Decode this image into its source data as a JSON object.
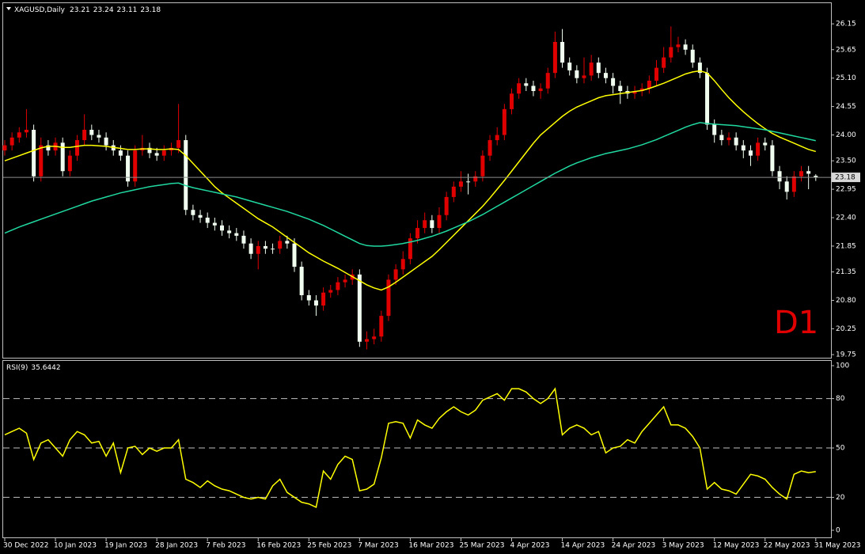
{
  "chart_data": [
    {
      "type": "candlestick",
      "title": "XAGUSD,Daily",
      "annotation": "D1",
      "up_color": "#e00000",
      "down_color": "#f0fff0",
      "categories": [
        "30 Dec 2022",
        null,
        null,
        null,
        null,
        null,
        null,
        "10 Jan 2023",
        null,
        null,
        null,
        null,
        null,
        null,
        "19 Jan 2023",
        null,
        null,
        null,
        null,
        null,
        null,
        "28 Jan 2023",
        null,
        null,
        null,
        null,
        null,
        null,
        "7 Feb 2023",
        null,
        null,
        null,
        null,
        null,
        null,
        "16 Feb 2023",
        null,
        null,
        null,
        null,
        null,
        null,
        "25 Feb 2023",
        null,
        null,
        null,
        null,
        null,
        null,
        "7 Mar 2023",
        null,
        null,
        null,
        null,
        null,
        null,
        "16 Mar 2023",
        null,
        null,
        null,
        null,
        null,
        null,
        "25 Mar 2023",
        null,
        null,
        null,
        null,
        null,
        null,
        "4 Apr 2023",
        null,
        null,
        null,
        null,
        null,
        null,
        "14 Apr 2023",
        null,
        null,
        null,
        null,
        null,
        null,
        "24 Apr 2023",
        null,
        null,
        null,
        null,
        null,
        null,
        "3 May 2023",
        null,
        null,
        null,
        null,
        null,
        null,
        "12 May 2023",
        null,
        null,
        null,
        null,
        null,
        null,
        "22 May 2023",
        null,
        null,
        null,
        null,
        null,
        null,
        "31 May 2023"
      ],
      "open": [
        23.7,
        23.8,
        23.95,
        24.05,
        24.1,
        23.2,
        23.8,
        23.7,
        23.85,
        23.3,
        23.6,
        23.9,
        24.1,
        24,
        23.95,
        23.8,
        23.7,
        23.6,
        23.1,
        23.7,
        23.75,
        23.65,
        23.6,
        23.7,
        23.75,
        23.9,
        22.55,
        22.45,
        22.4,
        22.3,
        22.25,
        22.15,
        22.1,
        22.05,
        21.9,
        21.7,
        21.85,
        21.8,
        21.8,
        21.95,
        21.9,
        21.45,
        20.9,
        20.8,
        20.7,
        20.95,
        21,
        21.15,
        21.2,
        21.3,
        20,
        20.05,
        20.1,
        20.5,
        21.2,
        21.4,
        21.6,
        22,
        22.2,
        22.35,
        22.2,
        22.45,
        22.8,
        23,
        23.1,
        23.1,
        23.2,
        23.6,
        23.9,
        24,
        24.5,
        24.8,
        25,
        24.95,
        24.85,
        24.9,
        25.2,
        25.8,
        25.4,
        25.25,
        25.1,
        25.15,
        25.4,
        25.2,
        25.1,
        24.95,
        24.85,
        24.8,
        24.85,
        24.9,
        25.05,
        25.3,
        25.5,
        25.7,
        25.75,
        25.65,
        25.4,
        25.2,
        24.2,
        24,
        23.9,
        23.95,
        23.8,
        23.7,
        23.6,
        23.85,
        23.8,
        23.3,
        23.1,
        22.9,
        23.2,
        23.3,
        23.21
      ],
      "high": [
        23.9,
        24.05,
        24.15,
        24.5,
        24.2,
        23.95,
        23.9,
        23.95,
        23.95,
        23.7,
        24,
        24.4,
        24.2,
        24.1,
        24.05,
        23.9,
        23.8,
        23.7,
        23.8,
        24,
        23.85,
        23.75,
        23.8,
        23.85,
        24.6,
        24,
        22.65,
        22.55,
        22.5,
        22.4,
        22.35,
        22.25,
        22.2,
        22.15,
        22,
        21.95,
        21.95,
        21.9,
        22.05,
        22.05,
        22,
        21.55,
        21,
        20.9,
        21.05,
        21.1,
        21.25,
        21.3,
        21.4,
        21.4,
        20.2,
        20.25,
        20.6,
        21.3,
        21.5,
        21.75,
        22.1,
        22.35,
        22.5,
        22.45,
        22.6,
        22.9,
        23.1,
        23.3,
        23.25,
        23.3,
        23.7,
        24,
        24.15,
        24.6,
        24.9,
        25.1,
        25.1,
        25.05,
        25,
        25.3,
        26,
        26.05,
        25.5,
        25.35,
        25.5,
        25.55,
        25.5,
        25.3,
        25.2,
        25.05,
        24.95,
        24.95,
        25,
        25.15,
        25.45,
        25.7,
        26.1,
        25.9,
        25.85,
        25.75,
        25.5,
        25.3,
        24.3,
        24.1,
        24.05,
        24.05,
        23.9,
        23.8,
        23.95,
        23.95,
        23.9,
        23.4,
        23.2,
        23.3,
        23.4,
        23.4,
        23.24
      ],
      "low": [
        23.6,
        23.7,
        23.85,
        23.95,
        23.1,
        23.1,
        23.6,
        23.6,
        23.2,
        23.2,
        23.5,
        23.8,
        23.9,
        23.85,
        23.7,
        23.6,
        23.5,
        23,
        23,
        23.6,
        23.55,
        23.5,
        23.5,
        23.6,
        23.65,
        22.45,
        22.35,
        22.3,
        22.2,
        22.15,
        22.05,
        22,
        21.95,
        21.8,
        21.6,
        21.4,
        21.7,
        21.7,
        21.7,
        21.8,
        21.35,
        20.8,
        20.7,
        20.5,
        20.6,
        20.85,
        20.9,
        21.05,
        21.1,
        19.9,
        19.85,
        19.95,
        20,
        20.4,
        21.1,
        21.3,
        21.5,
        21.9,
        22.1,
        22.1,
        22.1,
        22.35,
        22.7,
        22.9,
        22.85,
        23,
        23.1,
        23.5,
        23.8,
        23.9,
        24.4,
        24.7,
        24.85,
        24.75,
        24.7,
        24.8,
        25.1,
        25.3,
        25.15,
        25,
        25,
        25.05,
        25.1,
        25,
        24.8,
        24.6,
        24.7,
        24.7,
        24.75,
        24.8,
        24.95,
        25.2,
        25.4,
        25.6,
        25.55,
        25.3,
        25.1,
        24.1,
        23.85,
        23.8,
        23.8,
        23.7,
        23.55,
        23.4,
        23.5,
        23.7,
        23.2,
        22.95,
        22.75,
        22.8,
        23.1,
        22.95,
        23.11
      ],
      "close": [
        23.8,
        23.95,
        24.05,
        24.1,
        23.2,
        23.8,
        23.7,
        23.85,
        23.3,
        23.6,
        23.9,
        24.1,
        24,
        23.95,
        23.8,
        23.7,
        23.6,
        23.1,
        23.7,
        23.75,
        23.65,
        23.6,
        23.7,
        23.75,
        23.9,
        22.55,
        22.45,
        22.4,
        22.3,
        22.25,
        22.15,
        22.1,
        22.05,
        21.9,
        21.7,
        21.85,
        21.8,
        21.8,
        21.95,
        21.9,
        21.45,
        20.9,
        20.8,
        20.7,
        20.95,
        21,
        21.15,
        21.2,
        21.3,
        20,
        20.05,
        20.1,
        20.5,
        21.2,
        21.4,
        21.6,
        22,
        22.2,
        22.35,
        22.2,
        22.45,
        22.8,
        23,
        23.1,
        23.1,
        23.2,
        23.6,
        23.9,
        24,
        24.5,
        24.8,
        25,
        24.95,
        24.85,
        24.9,
        25.2,
        25.8,
        25.4,
        25.25,
        25.1,
        25.15,
        25.4,
        25.2,
        25.1,
        24.95,
        24.85,
        24.8,
        24.85,
        24.9,
        25.05,
        25.3,
        25.5,
        25.7,
        25.75,
        25.65,
        25.4,
        25.2,
        24.2,
        24,
        23.9,
        23.95,
        23.8,
        23.7,
        23.6,
        23.85,
        23.8,
        23.3,
        23.1,
        22.9,
        23.2,
        23.3,
        23.25,
        23.18
      ],
      "lines": [
        {
          "color": "#ffff00",
          "values": [
            23.5,
            23.55,
            23.6,
            23.65,
            23.7,
            23.75,
            23.78,
            23.78,
            23.76,
            23.76,
            23.78,
            23.8,
            23.8,
            23.79,
            23.78,
            23.76,
            23.74,
            23.72,
            23.72,
            23.73,
            23.73,
            23.72,
            23.72,
            23.73,
            23.72,
            23.6,
            23.45,
            23.3,
            23.15,
            23,
            22.88,
            22.78,
            22.68,
            22.58,
            22.48,
            22.38,
            22.3,
            22.22,
            22.12,
            22.02,
            21.92,
            21.82,
            21.72,
            21.64,
            21.56,
            21.49,
            21.42,
            21.34,
            21.26,
            21.18,
            21.1,
            21.04,
            21,
            21.06,
            21.15,
            21.25,
            21.35,
            21.45,
            21.55,
            21.65,
            21.78,
            21.92,
            22.06,
            22.2,
            22.34,
            22.48,
            22.62,
            22.78,
            22.95,
            23.12,
            23.3,
            23.48,
            23.66,
            23.84,
            24,
            24.12,
            24.24,
            24.36,
            24.46,
            24.54,
            24.6,
            24.66,
            24.72,
            24.76,
            24.78,
            24.8,
            24.82,
            24.84,
            24.86,
            24.9,
            24.95,
            25,
            25.06,
            25.12,
            25.18,
            25.22,
            25.24,
            25.2,
            25.05,
            24.88,
            24.72,
            24.58,
            24.45,
            24.33,
            24.22,
            24.12,
            24.03,
            23.96,
            23.9,
            23.84,
            23.78,
            23.72,
            23.68
          ]
        },
        {
          "color": "#20d8a0",
          "values": [
            22.1,
            22.16,
            22.22,
            22.27,
            22.32,
            22.37,
            22.42,
            22.47,
            22.52,
            22.57,
            22.62,
            22.67,
            22.72,
            22.76,
            22.8,
            22.84,
            22.88,
            22.91,
            22.94,
            22.97,
            23,
            23.02,
            23.04,
            23.06,
            23.07,
            23.02,
            22.98,
            22.95,
            22.92,
            22.89,
            22.86,
            22.83,
            22.8,
            22.76,
            22.72,
            22.68,
            22.64,
            22.6,
            22.56,
            22.52,
            22.47,
            22.42,
            22.37,
            22.31,
            22.25,
            22.18,
            22.11,
            22.04,
            21.97,
            21.9,
            21.86,
            21.85,
            21.85,
            21.86,
            21.88,
            21.9,
            21.93,
            21.96,
            22,
            22.04,
            22.09,
            22.14,
            22.2,
            22.26,
            22.32,
            22.39,
            22.46,
            22.54,
            22.62,
            22.7,
            22.78,
            22.86,
            22.94,
            23.02,
            23.1,
            23.18,
            23.26,
            23.33,
            23.4,
            23.46,
            23.51,
            23.56,
            23.6,
            23.64,
            23.67,
            23.7,
            23.73,
            23.77,
            23.81,
            23.86,
            23.91,
            23.97,
            24.03,
            24.09,
            24.15,
            24.2,
            24.24,
            24.22,
            24.21,
            24.2,
            24.19,
            24.18,
            24.16,
            24.14,
            24.12,
            24.1,
            24.07,
            24.04,
            24.01,
            23.98,
            23.95,
            23.92,
            23.89
          ]
        }
      ],
      "ylim": [
        19.69,
        26.55
      ],
      "yticks": [
        19.75,
        20.25,
        {
          "value": 20.8,
          "label": "20.80"
        },
        21.35,
        21.85,
        {
          "value": 22.4,
          "label": "22.40"
        },
        22.95,
        {
          "value": 23.5,
          "label": "23.50"
        },
        {
          "value": 24,
          "label": "24.00"
        },
        24.55,
        {
          "value": 25.1,
          "label": "25.10"
        },
        25.65,
        26.15
      ]
    },
    {
      "type": "line",
      "title": "RSI(9)",
      "color": "#ffff00",
      "values": [
        58,
        60,
        62,
        59,
        43,
        53,
        55,
        50,
        45,
        55,
        60,
        58,
        53,
        54,
        45,
        53,
        35,
        50,
        51,
        46,
        50,
        48,
        50,
        50,
        55,
        31,
        29,
        26,
        30,
        27,
        25,
        24,
        22,
        20,
        19,
        20,
        19,
        27,
        31,
        23,
        20,
        17,
        16,
        14,
        36,
        31,
        40,
        45,
        43,
        24,
        25,
        28,
        44,
        65,
        66,
        65,
        56,
        67,
        64,
        62,
        68,
        72,
        75,
        72,
        70,
        73,
        79,
        81,
        83,
        79,
        86,
        86,
        84,
        80,
        77,
        80,
        86,
        58,
        62,
        64,
        62,
        58,
        60,
        47,
        50,
        51,
        55,
        53,
        60,
        65,
        70,
        75,
        64,
        64,
        62,
        57,
        50,
        25,
        29,
        25,
        24,
        22,
        28,
        34,
        33,
        31,
        26,
        22,
        19,
        34,
        36,
        35,
        35.6442
      ],
      "ylim": [
        -4.8,
        102.9
      ],
      "yticks": [
        0,
        20,
        50,
        80,
        100
      ]
    }
  ]
}
